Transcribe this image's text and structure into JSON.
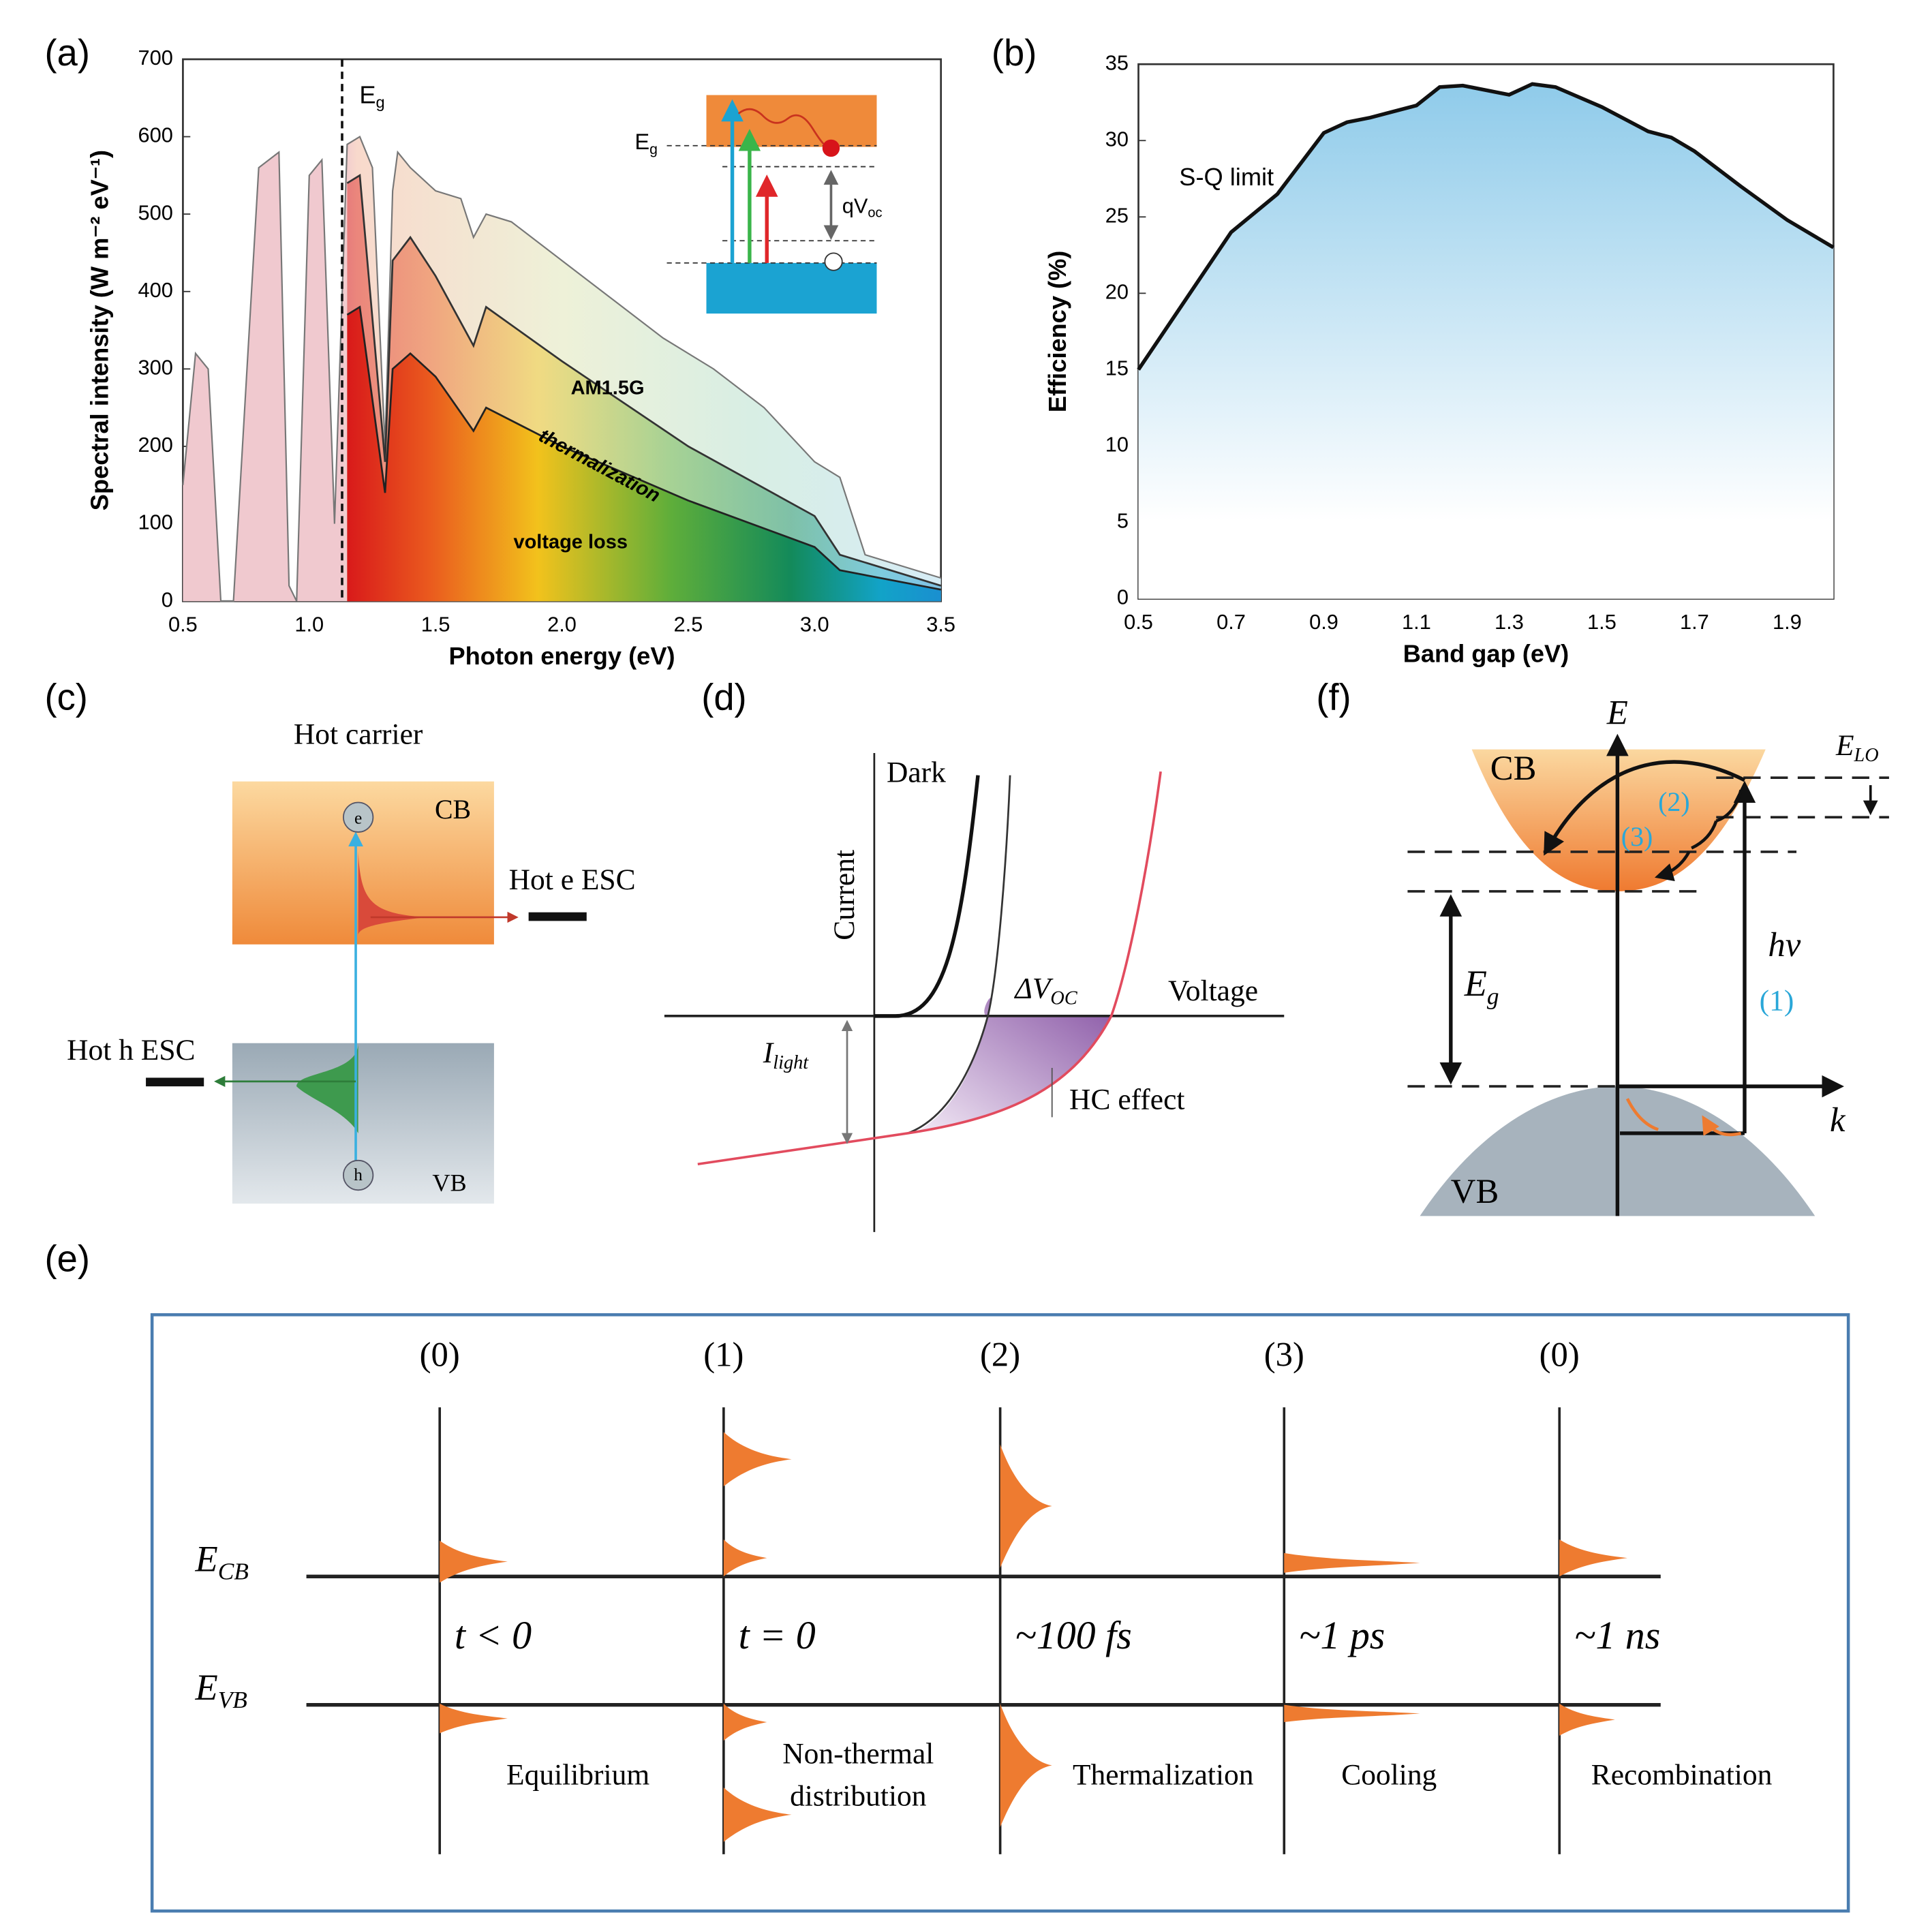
{
  "panel_a": {
    "label": "(a)",
    "type": "area",
    "xlabel": "Photon energy (eV)",
    "ylabel": "Spectral intensity (W m⁻² eV⁻¹)",
    "xlim": [
      0.5,
      3.5
    ],
    "ylim": [
      0,
      700
    ],
    "xticks": [
      0.5,
      {
        "value": 1,
        "label": "1.0"
      },
      1.5,
      {
        "value": 2,
        "label": "2.0"
      },
      2.5,
      {
        "value": 3,
        "label": "3.0"
      },
      3.5
    ],
    "yticks": [
      0,
      100,
      200,
      300,
      400,
      500,
      600,
      700
    ],
    "bandgap": {
      "symbol": "E",
      "subscript": "g",
      "x": 1.13
    },
    "series": [
      {
        "name": "AM1.5G",
        "color": "#777777",
        "x": [
          0.5,
          0.55,
          0.6,
          0.65,
          0.7,
          0.8,
          0.88,
          0.92,
          0.95,
          1.0,
          1.05,
          1.1,
          1.15,
          1.2,
          1.25,
          1.3,
          1.33,
          1.35,
          1.4,
          1.5,
          1.6,
          1.65,
          1.7,
          1.8,
          2.0,
          2.2,
          2.4,
          2.6,
          2.8,
          3.0,
          3.1,
          3.2,
          3.5
        ],
        "values": [
          150,
          320,
          300,
          0,
          0,
          560,
          580,
          20,
          0,
          550,
          570,
          100,
          590,
          600,
          560,
          200,
          530,
          580,
          560,
          530,
          520,
          470,
          500,
          490,
          440,
          390,
          340,
          300,
          250,
          180,
          160,
          60,
          30
        ]
      },
      {
        "name": "thermalization",
        "color": "#333333",
        "x": [
          1.15,
          1.2,
          1.3,
          1.33,
          1.4,
          1.5,
          1.65,
          1.7,
          2.0,
          2.5,
          3.0,
          3.1,
          3.5
        ],
        "values": [
          540,
          550,
          180,
          440,
          470,
          420,
          330,
          380,
          310,
          200,
          110,
          60,
          20
        ]
      },
      {
        "name": "voltage loss",
        "color": "#222222",
        "x": [
          1.15,
          1.2,
          1.3,
          1.33,
          1.4,
          1.5,
          1.65,
          1.7,
          2.0,
          2.5,
          3.0,
          3.1,
          3.5
        ],
        "values": [
          370,
          380,
          140,
          300,
          320,
          290,
          220,
          250,
          200,
          130,
          70,
          40,
          15
        ]
      }
    ],
    "inset": {
      "bandgap": {
        "symbol": "E",
        "subscript": "g"
      },
      "voltage": {
        "symbol": "qV",
        "subscript": "oc"
      }
    }
  },
  "panel_b": {
    "label": "(b)",
    "type": "line",
    "xlabel": "Band gap (eV)",
    "ylabel": "Efficiency (%)",
    "xlim": [
      0.5,
      2.0
    ],
    "ylim": [
      0,
      35
    ],
    "xticks": [
      0.5,
      0.7,
      0.9,
      1.1,
      1.3,
      1.5,
      1.7,
      1.9
    ],
    "yticks": [
      0,
      5,
      10,
      15,
      20,
      25,
      30,
      35
    ],
    "series": [
      {
        "name": "S-Q limit",
        "color": "#111111",
        "x": [
          0.5,
          0.6,
          0.7,
          0.8,
          0.9,
          0.95,
          1.0,
          1.1,
          1.15,
          1.2,
          1.25,
          1.3,
          1.35,
          1.4,
          1.5,
          1.6,
          1.65,
          1.7,
          1.8,
          1.9,
          2.0
        ],
        "values": [
          15,
          19.5,
          24,
          26.5,
          30.5,
          31.2,
          31.5,
          32.3,
          33.5,
          33.6,
          33.3,
          33,
          33.7,
          33.5,
          32.2,
          30.6,
          30.2,
          29.3,
          27,
          24.8,
          23
        ]
      }
    ]
  },
  "panel_c": {
    "label": "(c)",
    "title": "Hot carrier",
    "cb": "CB",
    "vb": "VB",
    "electron": "e",
    "hole": "h",
    "electron_escape": "Hot e ESC",
    "hole_escape": "Hot h ESC"
  },
  "panel_d": {
    "label": "(d)",
    "dark": "Dark",
    "current": "Current",
    "voltage": "Voltage",
    "dvoc": {
      "symbol": "ΔV",
      "subscript": "OC"
    },
    "ilight": {
      "symbol": "I",
      "subscript": "light"
    },
    "hc": "HC effect"
  },
  "panel_f": {
    "label": "(f)",
    "energy": "E",
    "cb": "CB",
    "vb": "VB",
    "elo": {
      "symbol": "E",
      "subscript": "LO"
    },
    "step2": "(2)",
    "step3": "(3)",
    "eg": {
      "symbol": "E",
      "subscript": "g"
    },
    "hv": "hν",
    "step1": "(1)",
    "k": "k"
  },
  "panel_e": {
    "label": "(e)",
    "ecb": {
      "symbol": "E",
      "subscript": "CB"
    },
    "evb": {
      "symbol": "E",
      "subscript": "VB"
    },
    "stages": [
      {
        "index": "(0)",
        "time": "t < 0",
        "name": [
          "Equilibrium"
        ]
      },
      {
        "index": "(1)",
        "time": "t = 0",
        "name": [
          "Non-thermal",
          "distribution"
        ]
      },
      {
        "index": "(2)",
        "time": "~100 fs",
        "name": [
          "Thermalization"
        ]
      },
      {
        "index": "(3)",
        "time": "~1 ps",
        "name": [
          "Cooling"
        ]
      },
      {
        "index": "(0)",
        "time": "~1 ns",
        "name": [
          "Recombination"
        ]
      }
    ]
  }
}
